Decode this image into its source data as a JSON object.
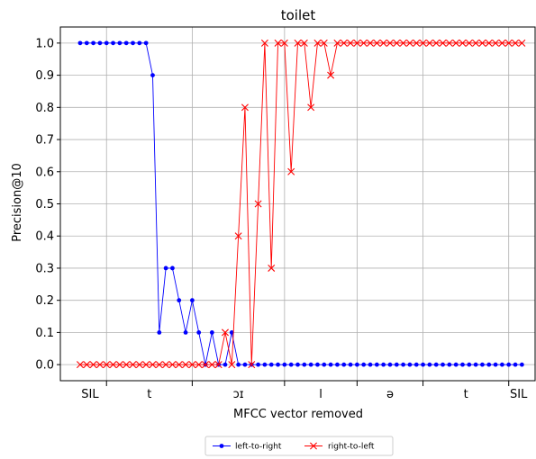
{
  "chart_data": {
    "type": "line",
    "title": "toilet",
    "xlabel": "MFCC vector removed",
    "ylabel": "Precision@10",
    "ylim": [
      -0.05,
      1.05
    ],
    "xlim": [
      -3,
      69
    ],
    "yticks": [
      0.0,
      0.1,
      0.2,
      0.3,
      0.4,
      0.5,
      0.6,
      0.7,
      0.8,
      0.9,
      1.0
    ],
    "ytick_labels": [
      "0.0",
      "0.1",
      "0.2",
      "0.3",
      "0.4",
      "0.5",
      "0.6",
      "0.7",
      "0.8",
      "0.9",
      "1.0"
    ],
    "phone_boundaries": [
      4,
      17,
      31,
      42,
      52,
      65
    ],
    "phone_labels": [
      {
        "label": "SIL",
        "x": 1.5
      },
      {
        "label": "t",
        "x": 10.5
      },
      {
        "label": "ɔɪ",
        "x": 24
      },
      {
        "label": "l",
        "x": 36.5
      },
      {
        "label": "ə",
        "x": 47
      },
      {
        "label": "t",
        "x": 58.5
      },
      {
        "label": "SIL",
        "x": 66.5
      }
    ],
    "grid": true,
    "legend_position": "bottom-center",
    "series": [
      {
        "name": "left-to-right",
        "color": "#0000ff",
        "marker": "circle",
        "x": [
          0,
          1,
          2,
          3,
          4,
          5,
          6,
          7,
          8,
          9,
          10,
          11,
          12,
          13,
          14,
          15,
          16,
          17,
          18,
          19,
          20,
          21,
          22,
          23,
          24,
          25,
          26,
          27,
          28,
          29,
          30,
          31,
          32,
          33,
          34,
          35,
          36,
          37,
          38,
          39,
          40,
          41,
          42,
          43,
          44,
          45,
          46,
          47,
          48,
          49,
          50,
          51,
          52,
          53,
          54,
          55,
          56,
          57,
          58,
          59,
          60,
          61,
          62,
          63,
          64,
          65,
          66,
          67
        ],
        "values": [
          1.0,
          1.0,
          1.0,
          1.0,
          1.0,
          1.0,
          1.0,
          1.0,
          1.0,
          1.0,
          1.0,
          0.9,
          0.1,
          0.3,
          0.3,
          0.2,
          0.1,
          0.2,
          0.1,
          0.0,
          0.1,
          0.0,
          0.0,
          0.1,
          0.0,
          0.0,
          0.0,
          0.0,
          0.0,
          0.0,
          0.0,
          0.0,
          0.0,
          0.0,
          0.0,
          0.0,
          0.0,
          0.0,
          0.0,
          0.0,
          0.0,
          0.0,
          0.0,
          0.0,
          0.0,
          0.0,
          0.0,
          0.0,
          0.0,
          0.0,
          0.0,
          0.0,
          0.0,
          0.0,
          0.0,
          0.0,
          0.0,
          0.0,
          0.0,
          0.0,
          0.0,
          0.0,
          0.0,
          0.0,
          0.0,
          0.0,
          0.0,
          0.0
        ]
      },
      {
        "name": "right-to-left",
        "color": "#ff0000",
        "marker": "x",
        "x": [
          0,
          1,
          2,
          3,
          4,
          5,
          6,
          7,
          8,
          9,
          10,
          11,
          12,
          13,
          14,
          15,
          16,
          17,
          18,
          19,
          20,
          21,
          22,
          23,
          24,
          25,
          26,
          27,
          28,
          29,
          30,
          31,
          32,
          33,
          34,
          35,
          36,
          37,
          38,
          39,
          40,
          41,
          42,
          43,
          44,
          45,
          46,
          47,
          48,
          49,
          50,
          51,
          52,
          53,
          54,
          55,
          56,
          57,
          58,
          59,
          60,
          61,
          62,
          63,
          64,
          65,
          66,
          67
        ],
        "values": [
          0.0,
          0.0,
          0.0,
          0.0,
          0.0,
          0.0,
          0.0,
          0.0,
          0.0,
          0.0,
          0.0,
          0.0,
          0.0,
          0.0,
          0.0,
          0.0,
          0.0,
          0.0,
          0.0,
          0.0,
          0.0,
          0.0,
          0.1,
          0.0,
          0.4,
          0.8,
          0.0,
          0.5,
          1.0,
          0.3,
          1.0,
          1.0,
          0.6,
          1.0,
          1.0,
          0.8,
          1.0,
          1.0,
          0.9,
          1.0,
          1.0,
          1.0,
          1.0,
          1.0,
          1.0,
          1.0,
          1.0,
          1.0,
          1.0,
          1.0,
          1.0,
          1.0,
          1.0,
          1.0,
          1.0,
          1.0,
          1.0,
          1.0,
          1.0,
          1.0,
          1.0,
          1.0,
          1.0,
          1.0,
          1.0,
          1.0,
          1.0,
          1.0
        ]
      }
    ]
  }
}
